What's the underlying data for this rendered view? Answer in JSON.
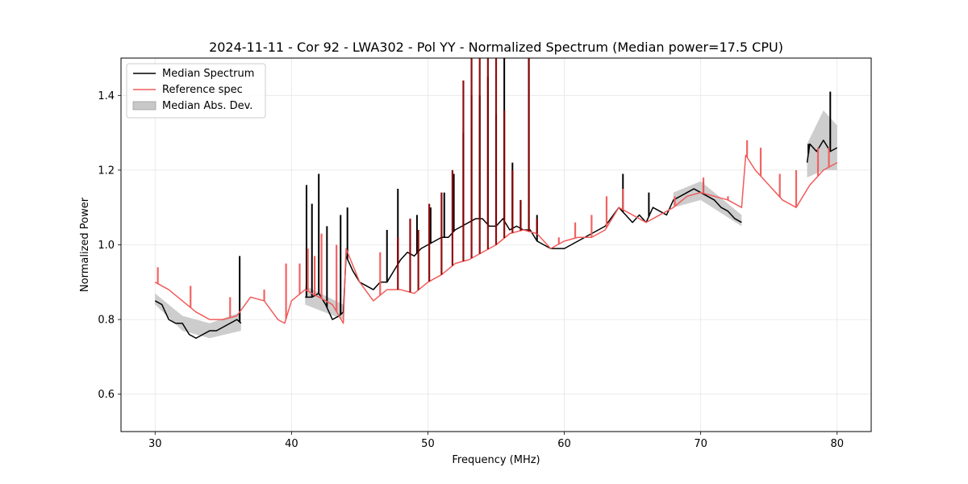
{
  "chart_data": {
    "type": "line",
    "title": "2024-11-11 - Cor 92 - LWA302 - Pol YY - Normalized Spectrum (Median power=17.5 CPU)",
    "xlabel": "Frequency (MHz)",
    "ylabel": "Normalized Power",
    "xlim": [
      27.5,
      82.5
    ],
    "ylim": [
      0.5,
      1.5
    ],
    "xticks": [
      30,
      40,
      50,
      60,
      70,
      80
    ],
    "yticks": [
      0.6,
      0.8,
      1.0,
      1.2,
      1.4
    ],
    "xtick_labels": [
      "30",
      "40",
      "50",
      "60",
      "70",
      "80"
    ],
    "ytick_labels": [
      "0.6",
      "0.8",
      "1.0",
      "1.2",
      "1.4"
    ],
    "grid": true,
    "legend_position": "top-left",
    "legend": [
      "Median Spectrum",
      "Reference spec",
      "Median Abs. Dev."
    ],
    "colors": {
      "median": "#000000",
      "reference": "#f15b5b",
      "overlap": "#8b0000",
      "mad_fill": "#c8c8c8"
    },
    "series": [
      {
        "name": "Median Spectrum",
        "color": "#000000",
        "x": [
          30.0,
          30.5,
          31.0,
          31.5,
          32.0,
          32.5,
          33.0,
          33.5,
          34.0,
          34.5,
          35.0,
          35.5,
          36.0,
          36.3,
          41.0,
          41.5,
          42.0,
          42.5,
          43.0,
          43.5,
          43.8,
          44.0,
          44.5,
          45.0,
          45.5,
          46.0,
          46.5,
          47.0,
          47.5,
          48.0,
          48.5,
          49.0,
          49.5,
          50.0,
          50.5,
          51.0,
          51.5,
          52.0,
          52.5,
          53.0,
          53.5,
          54.0,
          54.5,
          55.0,
          55.5,
          56.0,
          56.5,
          57.0,
          57.5,
          58.0,
          58.5,
          59.0,
          60.0,
          61.0,
          62.0,
          63.0,
          64.0,
          64.5,
          65.0,
          65.5,
          66.0,
          66.5,
          67.0,
          67.5,
          68.0,
          68.5,
          69.0,
          69.5,
          70.0,
          70.5,
          71.0,
          71.5,
          72.0,
          72.5,
          73.0,
          77.8,
          78.0,
          78.5,
          79.0,
          79.5,
          80.0
        ],
        "y": [
          0.85,
          0.84,
          0.8,
          0.79,
          0.79,
          0.76,
          0.75,
          0.76,
          0.77,
          0.77,
          0.78,
          0.79,
          0.8,
          0.79,
          0.86,
          0.86,
          0.87,
          0.84,
          0.8,
          0.81,
          0.82,
          0.97,
          0.93,
          0.9,
          0.89,
          0.88,
          0.9,
          0.9,
          0.93,
          0.96,
          0.98,
          0.97,
          0.99,
          1.0,
          1.01,
          1.02,
          1.02,
          1.04,
          1.05,
          1.06,
          1.07,
          1.07,
          1.05,
          1.05,
          1.07,
          1.04,
          1.05,
          1.04,
          1.04,
          1.01,
          1.0,
          0.99,
          0.99,
          1.01,
          1.03,
          1.05,
          1.1,
          1.08,
          1.06,
          1.08,
          1.06,
          1.1,
          1.09,
          1.08,
          1.12,
          1.13,
          1.14,
          1.15,
          1.14,
          1.13,
          1.12,
          1.1,
          1.09,
          1.07,
          1.06,
          1.22,
          1.27,
          1.25,
          1.28,
          1.25,
          1.26
        ]
      },
      {
        "name": "Reference spec",
        "color": "#f15b5b",
        "x": [
          30.0,
          31.0,
          32.0,
          33.0,
          34.0,
          35.0,
          36.0,
          37.0,
          38.0,
          39.0,
          39.5,
          40.0,
          41.0,
          42.0,
          43.0,
          43.8,
          44.0,
          45.0,
          46.0,
          47.0,
          48.0,
          49.0,
          50.0,
          51.0,
          52.0,
          53.0,
          54.0,
          55.0,
          56.0,
          57.0,
          58.0,
          59.0,
          60.0,
          61.0,
          62.0,
          63.0,
          64.0,
          65.0,
          66.0,
          67.0,
          68.0,
          69.0,
          70.0,
          71.0,
          72.0,
          73.0,
          73.3,
          74.0,
          75.0,
          76.0,
          77.0,
          78.0,
          79.0,
          80.0
        ],
        "y": [
          0.9,
          0.88,
          0.85,
          0.82,
          0.8,
          0.8,
          0.81,
          0.86,
          0.85,
          0.8,
          0.79,
          0.85,
          0.88,
          0.86,
          0.84,
          0.79,
          0.99,
          0.9,
          0.85,
          0.88,
          0.88,
          0.87,
          0.9,
          0.92,
          0.95,
          0.96,
          0.98,
          1.0,
          1.03,
          1.04,
          1.03,
          0.99,
          1.01,
          1.02,
          1.02,
          1.04,
          1.1,
          1.08,
          1.06,
          1.08,
          1.1,
          1.13,
          1.14,
          1.13,
          1.12,
          1.1,
          1.24,
          1.2,
          1.16,
          1.12,
          1.1,
          1.16,
          1.2,
          1.22
        ]
      },
      {
        "name": "Median Abs. Dev.",
        "color": "#c8c8c8",
        "x": [
          30.0,
          32.0,
          34.0,
          36.3,
          41.0,
          43.8,
          44.0,
          48.0,
          52.0,
          56.0,
          60.0,
          64.0,
          68.0,
          70.0,
          73.0,
          77.8,
          79.0,
          80.0
        ],
        "lower": [
          0.84,
          0.77,
          0.75,
          0.77,
          0.84,
          0.8,
          0.95,
          0.94,
          1.02,
          1.02,
          0.98,
          1.08,
          1.1,
          1.12,
          1.05,
          1.18,
          1.2,
          1.2
        ],
        "upper": [
          0.87,
          0.81,
          0.79,
          0.82,
          0.89,
          0.84,
          0.99,
          0.99,
          1.07,
          1.07,
          1.01,
          1.12,
          1.14,
          1.17,
          1.08,
          1.27,
          1.36,
          1.32
        ]
      }
    ],
    "spikes": {
      "median": [
        {
          "x": 36.2,
          "y": 0.97
        },
        {
          "x": 41.1,
          "y": 1.16
        },
        {
          "x": 41.5,
          "y": 1.11
        },
        {
          "x": 42.0,
          "y": 1.19
        },
        {
          "x": 42.6,
          "y": 1.05
        },
        {
          "x": 43.6,
          "y": 1.08
        },
        {
          "x": 44.1,
          "y": 1.1
        },
        {
          "x": 47.0,
          "y": 1.04
        },
        {
          "x": 47.8,
          "y": 1.15
        },
        {
          "x": 49.2,
          "y": 1.08
        },
        {
          "x": 50.2,
          "y": 1.1
        },
        {
          "x": 51.2,
          "y": 1.14
        },
        {
          "x": 51.9,
          "y": 1.19
        },
        {
          "x": 52.6,
          "y": 1.3
        },
        {
          "x": 53.2,
          "y": 1.4
        },
        {
          "x": 53.8,
          "y": 1.4
        },
        {
          "x": 54.4,
          "y": 1.45
        },
        {
          "x": 55.0,
          "y": 1.35
        },
        {
          "x": 55.6,
          "y": 1.5
        },
        {
          "x": 56.2,
          "y": 1.22
        },
        {
          "x": 56.8,
          "y": 1.12
        },
        {
          "x": 57.4,
          "y": 1.5
        },
        {
          "x": 58.0,
          "y": 1.08
        },
        {
          "x": 64.3,
          "y": 1.19
        },
        {
          "x": 66.2,
          "y": 1.14
        },
        {
          "x": 68.1,
          "y": 1.12
        },
        {
          "x": 70.2,
          "y": 1.17
        },
        {
          "x": 77.9,
          "y": 1.27
        },
        {
          "x": 79.5,
          "y": 1.41
        }
      ],
      "reference": [
        {
          "x": 30.2,
          "y": 0.94
        },
        {
          "x": 32.6,
          "y": 0.89
        },
        {
          "x": 35.5,
          "y": 0.86
        },
        {
          "x": 38.0,
          "y": 0.88
        },
        {
          "x": 39.6,
          "y": 0.95
        },
        {
          "x": 40.6,
          "y": 0.95
        },
        {
          "x": 41.2,
          "y": 0.99
        },
        {
          "x": 41.7,
          "y": 0.97
        },
        {
          "x": 42.2,
          "y": 1.03
        },
        {
          "x": 43.3,
          "y": 1.0
        },
        {
          "x": 46.5,
          "y": 0.98
        },
        {
          "x": 47.8,
          "y": 1.02
        },
        {
          "x": 48.7,
          "y": 1.07
        },
        {
          "x": 49.3,
          "y": 1.04
        },
        {
          "x": 50.1,
          "y": 1.11
        },
        {
          "x": 51.0,
          "y": 1.14
        },
        {
          "x": 51.8,
          "y": 1.2
        },
        {
          "x": 52.6,
          "y": 1.44
        },
        {
          "x": 53.2,
          "y": 1.5
        },
        {
          "x": 53.8,
          "y": 1.5
        },
        {
          "x": 54.4,
          "y": 1.5
        },
        {
          "x": 55.0,
          "y": 1.5
        },
        {
          "x": 55.6,
          "y": 1.36
        },
        {
          "x": 56.2,
          "y": 1.2
        },
        {
          "x": 56.8,
          "y": 1.12
        },
        {
          "x": 57.4,
          "y": 1.5
        },
        {
          "x": 58.0,
          "y": 1.07
        },
        {
          "x": 59.6,
          "y": 1.02
        },
        {
          "x": 60.8,
          "y": 1.06
        },
        {
          "x": 62.0,
          "y": 1.08
        },
        {
          "x": 63.1,
          "y": 1.13
        },
        {
          "x": 64.3,
          "y": 1.15
        },
        {
          "x": 68.1,
          "y": 1.13
        },
        {
          "x": 70.2,
          "y": 1.18
        },
        {
          "x": 72.0,
          "y": 1.13
        },
        {
          "x": 73.4,
          "y": 1.28
        },
        {
          "x": 74.4,
          "y": 1.26
        },
        {
          "x": 75.8,
          "y": 1.19
        },
        {
          "x": 77.0,
          "y": 1.2
        },
        {
          "x": 78.6,
          "y": 1.26
        },
        {
          "x": 79.4,
          "y": 1.26
        }
      ]
    }
  }
}
